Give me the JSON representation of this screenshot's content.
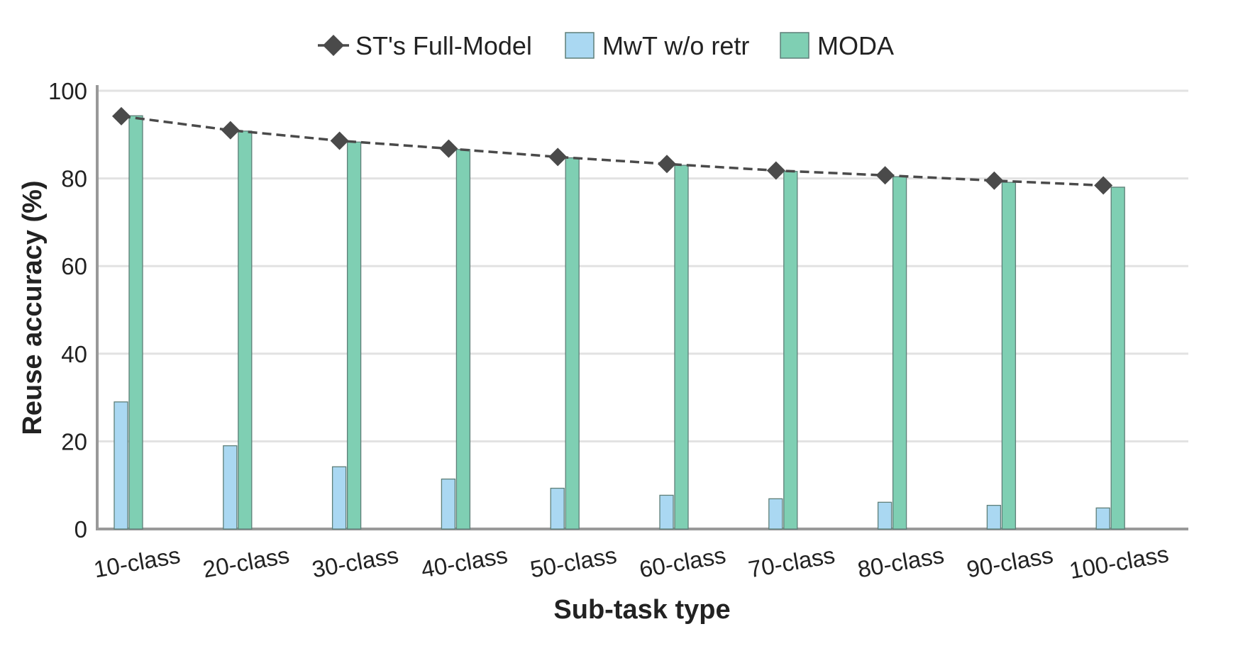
{
  "chart_data": {
    "type": "bar",
    "xlabel": "Sub-task type",
    "ylabel": "Reuse accuracy (%)",
    "ylim": [
      0,
      100
    ],
    "yticks": [
      0,
      20,
      40,
      60,
      80,
      100
    ],
    "grid": "horizontal",
    "legend_placement": "top-center",
    "categories": [
      "10-class",
      "20-class",
      "30-class",
      "40-class",
      "50-class",
      "60-class",
      "70-class",
      "80-class",
      "90-class",
      "100-class"
    ],
    "series": [
      {
        "name": "ST's Full-Model",
        "kind": "line",
        "marker": "diamond",
        "line_style": "dashed",
        "color": "#4a4a4a",
        "values": [
          94.2,
          91.0,
          88.6,
          86.8,
          84.9,
          83.3,
          81.8,
          80.7,
          79.5,
          78.4
        ]
      },
      {
        "name": "MwT w/o retr",
        "kind": "bar",
        "color": "#aad8f2",
        "values": [
          29.0,
          19.0,
          14.2,
          11.4,
          9.3,
          7.7,
          6.9,
          6.1,
          5.4,
          4.8
        ]
      },
      {
        "name": "MODA",
        "kind": "bar",
        "color": "#7fcfb3",
        "values": [
          94.3,
          90.8,
          88.3,
          86.6,
          84.7,
          83.0,
          81.6,
          80.4,
          79.1,
          78.0
        ]
      }
    ]
  }
}
